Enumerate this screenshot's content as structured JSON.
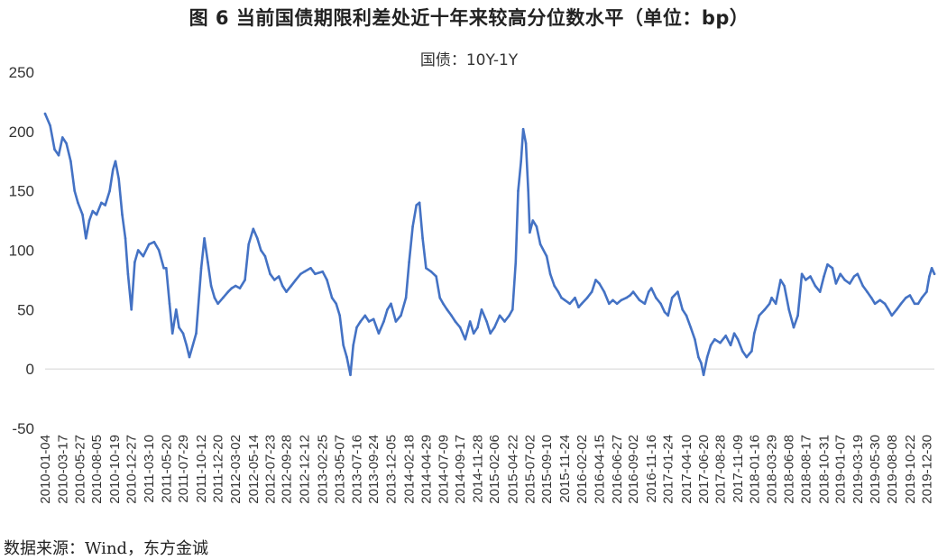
{
  "figure": {
    "title": "图 6   当前国债期限利差处近十年来较高分位数水平（单位：bp）",
    "subtitle": "国债：10Y-1Y",
    "source": "数据来源：Wind，东方金诚"
  },
  "colors": {
    "line": "#4472C4",
    "zero_line": "#D9D9D9",
    "text": "#222222"
  },
  "chart_data": {
    "type": "line",
    "title": "国债：10Y-1Y",
    "xlabel": "",
    "ylabel": "",
    "ylim": [
      -50,
      250
    ],
    "yticks": [
      -50,
      0,
      50,
      100,
      150,
      200,
      250
    ],
    "grid": false,
    "x_tick_labels": [
      "2010-01-04",
      "2010-03-17",
      "2010-05-27",
      "2010-08-05",
      "2010-10-19",
      "2010-12-27",
      "2011-03-10",
      "2011-05-20",
      "2011-07-29",
      "2011-10-12",
      "2011-12-20",
      "2012-03-02",
      "2012-05-14",
      "2012-07-23",
      "2012-09-28",
      "2012-12-12",
      "2013-02-25",
      "2013-05-07",
      "2013-07-16",
      "2013-09-24",
      "2013-12-05",
      "2014-02-18",
      "2014-04-29",
      "2014-07-09",
      "2014-09-17",
      "2014-11-28",
      "2015-02-06",
      "2015-04-22",
      "2015-07-02",
      "2015-09-10",
      "2015-11-24",
      "2016-02-02",
      "2016-04-15",
      "2016-06-27",
      "2016-09-02",
      "2016-11-16",
      "2017-01-24",
      "2017-04-10",
      "2017-06-20",
      "2017-08-28",
      "2017-11-09",
      "2018-01-16",
      "2018-03-29",
      "2018-06-08",
      "2018-08-17",
      "2018-10-31",
      "2019-01-07",
      "2019-03-19",
      "2019-05-30",
      "2019-08-08",
      "2019-10-22",
      "2019-12-30"
    ],
    "series": [
      {
        "values": [
          [
            "2010-01-04",
            215
          ],
          [
            "2010-01-25",
            205
          ],
          [
            "2010-02-12",
            185
          ],
          [
            "2010-03-01",
            180
          ],
          [
            "2010-03-17",
            195
          ],
          [
            "2010-04-02",
            190
          ],
          [
            "2010-04-20",
            175
          ],
          [
            "2010-05-06",
            150
          ],
          [
            "2010-05-20",
            140
          ],
          [
            "2010-06-08",
            130
          ],
          [
            "2010-06-22",
            110
          ],
          [
            "2010-07-06",
            125
          ],
          [
            "2010-07-20",
            133
          ],
          [
            "2010-08-05",
            130
          ],
          [
            "2010-08-25",
            140
          ],
          [
            "2010-09-10",
            138
          ],
          [
            "2010-09-28",
            150
          ],
          [
            "2010-10-12",
            168
          ],
          [
            "2010-10-22",
            175
          ],
          [
            "2010-11-05",
            160
          ],
          [
            "2010-11-19",
            130
          ],
          [
            "2010-12-02",
            110
          ],
          [
            "2010-12-13",
            80
          ],
          [
            "2010-12-27",
            50
          ],
          [
            "2011-01-10",
            90
          ],
          [
            "2011-01-24",
            100
          ],
          [
            "2011-02-14",
            95
          ],
          [
            "2011-03-10",
            105
          ],
          [
            "2011-03-31",
            107
          ],
          [
            "2011-04-20",
            100
          ],
          [
            "2011-05-10",
            85
          ],
          [
            "2011-05-20",
            85
          ],
          [
            "2011-06-03",
            55
          ],
          [
            "2011-06-15",
            30
          ],
          [
            "2011-06-30",
            50
          ],
          [
            "2011-07-12",
            35
          ],
          [
            "2011-07-29",
            30
          ],
          [
            "2011-08-12",
            20
          ],
          [
            "2011-08-24",
            10
          ],
          [
            "2011-09-07",
            20
          ],
          [
            "2011-09-21",
            30
          ],
          [
            "2011-10-12",
            85
          ],
          [
            "2011-10-25",
            110
          ],
          [
            "2011-11-08",
            90
          ],
          [
            "2011-11-22",
            70
          ],
          [
            "2011-12-06",
            60
          ],
          [
            "2011-12-20",
            55
          ],
          [
            "2012-01-10",
            60
          ],
          [
            "2012-01-31",
            65
          ],
          [
            "2012-02-15",
            68
          ],
          [
            "2012-03-02",
            70
          ],
          [
            "2012-03-20",
            68
          ],
          [
            "2012-04-10",
            75
          ],
          [
            "2012-04-25",
            105
          ],
          [
            "2012-05-14",
            118
          ],
          [
            "2012-05-31",
            110
          ],
          [
            "2012-06-15",
            100
          ],
          [
            "2012-07-02",
            95
          ],
          [
            "2012-07-23",
            80
          ],
          [
            "2012-08-10",
            75
          ],
          [
            "2012-08-28",
            78
          ],
          [
            "2012-09-12",
            70
          ],
          [
            "2012-09-28",
            65
          ],
          [
            "2012-10-18",
            70
          ],
          [
            "2012-11-06",
            75
          ],
          [
            "2012-11-26",
            80
          ],
          [
            "2012-12-12",
            82
          ],
          [
            "2013-01-07",
            85
          ],
          [
            "2013-01-25",
            80
          ],
          [
            "2013-02-25",
            82
          ],
          [
            "2013-03-15",
            75
          ],
          [
            "2013-04-05",
            60
          ],
          [
            "2013-04-22",
            55
          ],
          [
            "2013-05-07",
            45
          ],
          [
            "2013-05-22",
            20
          ],
          [
            "2013-06-05",
            10
          ],
          [
            "2013-06-20",
            -5
          ],
          [
            "2013-07-02",
            20
          ],
          [
            "2013-07-16",
            35
          ],
          [
            "2013-08-01",
            40
          ],
          [
            "2013-08-20",
            45
          ],
          [
            "2013-09-05",
            40
          ],
          [
            "2013-09-24",
            42
          ],
          [
            "2013-10-15",
            30
          ],
          [
            "2013-11-05",
            40
          ],
          [
            "2013-11-20",
            50
          ],
          [
            "2013-12-05",
            55
          ],
          [
            "2013-12-25",
            40
          ],
          [
            "2014-01-15",
            45
          ],
          [
            "2014-02-05",
            60
          ],
          [
            "2014-02-18",
            90
          ],
          [
            "2014-03-05",
            120
          ],
          [
            "2014-03-20",
            138
          ],
          [
            "2014-04-02",
            140
          ],
          [
            "2014-04-15",
            110
          ],
          [
            "2014-04-29",
            85
          ],
          [
            "2014-05-20",
            82
          ],
          [
            "2014-06-10",
            78
          ],
          [
            "2014-06-25",
            60
          ],
          [
            "2014-07-09",
            55
          ],
          [
            "2014-07-25",
            50
          ],
          [
            "2014-08-12",
            45
          ],
          [
            "2014-08-28",
            40
          ],
          [
            "2014-09-17",
            35
          ],
          [
            "2014-10-08",
            25
          ],
          [
            "2014-10-28",
            40
          ],
          [
            "2014-11-12",
            30
          ],
          [
            "2014-11-28",
            35
          ],
          [
            "2014-12-15",
            50
          ],
          [
            "2015-01-05",
            40
          ],
          [
            "2015-01-20",
            30
          ],
          [
            "2015-02-06",
            35
          ],
          [
            "2015-02-28",
            45
          ],
          [
            "2015-03-20",
            40
          ],
          [
            "2015-04-08",
            45
          ],
          [
            "2015-04-22",
            50
          ],
          [
            "2015-05-05",
            90
          ],
          [
            "2015-05-15",
            150
          ],
          [
            "2015-05-27",
            175
          ],
          [
            "2015-06-05",
            202
          ],
          [
            "2015-06-16",
            190
          ],
          [
            "2015-06-26",
            150
          ],
          [
            "2015-07-02",
            115
          ],
          [
            "2015-07-15",
            125
          ],
          [
            "2015-07-30",
            120
          ],
          [
            "2015-08-15",
            105
          ],
          [
            "2015-09-10",
            95
          ],
          [
            "2015-09-25",
            80
          ],
          [
            "2015-10-12",
            70
          ],
          [
            "2015-10-28",
            65
          ],
          [
            "2015-11-10",
            60
          ],
          [
            "2015-11-24",
            58
          ],
          [
            "2015-12-15",
            55
          ],
          [
            "2016-01-05",
            60
          ],
          [
            "2016-01-20",
            52
          ],
          [
            "2016-02-02",
            55
          ],
          [
            "2016-02-25",
            60
          ],
          [
            "2016-03-15",
            65
          ],
          [
            "2016-03-31",
            75
          ],
          [
            "2016-04-15",
            72
          ],
          [
            "2016-05-05",
            65
          ],
          [
            "2016-05-25",
            55
          ],
          [
            "2016-06-10",
            58
          ],
          [
            "2016-06-27",
            55
          ],
          [
            "2016-07-15",
            58
          ],
          [
            "2016-08-05",
            60
          ],
          [
            "2016-08-20",
            62
          ],
          [
            "2016-09-02",
            65
          ],
          [
            "2016-09-28",
            58
          ],
          [
            "2016-10-20",
            55
          ],
          [
            "2016-11-05",
            65
          ],
          [
            "2016-11-16",
            68
          ],
          [
            "2016-12-05",
            60
          ],
          [
            "2016-12-25",
            55
          ],
          [
            "2017-01-10",
            48
          ],
          [
            "2017-01-24",
            45
          ],
          [
            "2017-02-10",
            60
          ],
          [
            "2017-03-05",
            65
          ],
          [
            "2017-03-25",
            50
          ],
          [
            "2017-04-10",
            45
          ],
          [
            "2017-04-28",
            35
          ],
          [
            "2017-05-15",
            25
          ],
          [
            "2017-05-30",
            10
          ],
          [
            "2017-06-10",
            5
          ],
          [
            "2017-06-20",
            -5
          ],
          [
            "2017-07-05",
            10
          ],
          [
            "2017-07-20",
            20
          ],
          [
            "2017-08-05",
            25
          ],
          [
            "2017-08-28",
            22
          ],
          [
            "2017-09-20",
            28
          ],
          [
            "2017-10-10",
            20
          ],
          [
            "2017-10-25",
            30
          ],
          [
            "2017-11-09",
            25
          ],
          [
            "2017-11-28",
            15
          ],
          [
            "2017-12-15",
            10
          ],
          [
            "2018-01-05",
            15
          ],
          [
            "2018-01-16",
            30
          ],
          [
            "2018-02-05",
            45
          ],
          [
            "2018-02-28",
            50
          ],
          [
            "2018-03-20",
            55
          ],
          [
            "2018-03-29",
            60
          ],
          [
            "2018-04-15",
            55
          ],
          [
            "2018-05-05",
            75
          ],
          [
            "2018-05-20",
            70
          ],
          [
            "2018-06-08",
            50
          ],
          [
            "2018-06-28",
            35
          ],
          [
            "2018-07-15",
            45
          ],
          [
            "2018-08-01",
            80
          ],
          [
            "2018-08-17",
            75
          ],
          [
            "2018-09-05",
            78
          ],
          [
            "2018-09-25",
            70
          ],
          [
            "2018-10-15",
            65
          ],
          [
            "2018-10-31",
            78
          ],
          [
            "2018-11-15",
            88
          ],
          [
            "2018-12-05",
            85
          ],
          [
            "2018-12-20",
            72
          ],
          [
            "2019-01-07",
            80
          ],
          [
            "2019-01-25",
            75
          ],
          [
            "2019-02-15",
            72
          ],
          [
            "2019-03-05",
            78
          ],
          [
            "2019-03-19",
            80
          ],
          [
            "2019-04-10",
            70
          ],
          [
            "2019-04-28",
            65
          ],
          [
            "2019-05-15",
            60
          ],
          [
            "2019-05-30",
            55
          ],
          [
            "2019-06-20",
            58
          ],
          [
            "2019-07-10",
            55
          ],
          [
            "2019-07-25",
            50
          ],
          [
            "2019-08-08",
            45
          ],
          [
            "2019-08-28",
            50
          ],
          [
            "2019-09-15",
            55
          ],
          [
            "2019-10-05",
            60
          ],
          [
            "2019-10-22",
            62
          ],
          [
            "2019-11-10",
            55
          ],
          [
            "2019-11-25",
            55
          ],
          [
            "2019-12-10",
            60
          ],
          [
            "2019-12-30",
            65
          ],
          [
            "2020-01-10",
            78
          ],
          [
            "2020-01-20",
            85
          ],
          [
            "2020-01-31",
            80
          ]
        ]
      }
    ]
  }
}
